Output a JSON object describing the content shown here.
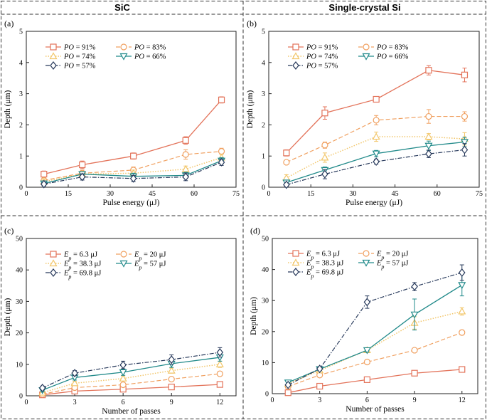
{
  "headers": {
    "left": "SiC",
    "right": "Single-crystal Si"
  },
  "colors": {
    "red": "#e3735a",
    "orange": "#f0a060",
    "yellow": "#f2c66a",
    "teal": "#218a8a",
    "navy": "#26385a"
  },
  "chart_data": [
    {
      "panel": "(a)",
      "type": "line",
      "material": "SiC",
      "xlabel": "Pulse energy (μJ)",
      "ylabel": "Depth (μm)",
      "xlim": [
        0,
        75
      ],
      "ylim": [
        0,
        5
      ],
      "xticks": [
        0,
        15,
        30,
        45,
        60,
        75
      ],
      "yticks": [
        0,
        1,
        2,
        3,
        4,
        5
      ],
      "x": [
        6.3,
        20,
        38.3,
        57,
        69.8
      ],
      "series": [
        {
          "name": "PO = 91%",
          "values": [
            0.42,
            0.72,
            1.0,
            1.5,
            2.8
          ],
          "err": [
            0.1,
            0.12,
            0.1,
            0.12,
            0.1
          ]
        },
        {
          "name": "PO = 83%",
          "values": [
            0.22,
            0.45,
            0.55,
            1.05,
            1.15
          ],
          "err": [
            0.08,
            0.1,
            0.1,
            0.15,
            0.1
          ]
        },
        {
          "name": "PO = 74%",
          "values": [
            0.18,
            0.42,
            0.45,
            0.58,
            0.95
          ],
          "err": [
            0.08,
            0.08,
            0.1,
            0.1,
            0.1
          ]
        },
        {
          "name": "PO = 66%",
          "values": [
            0.12,
            0.42,
            0.35,
            0.38,
            0.85
          ],
          "err": [
            0.08,
            0.08,
            0.1,
            0.1,
            0.1
          ]
        },
        {
          "name": "PO = 57%",
          "values": [
            0.1,
            0.33,
            0.28,
            0.33,
            0.8
          ],
          "err": [
            0.05,
            0.1,
            0.1,
            0.12,
            0.1
          ]
        }
      ]
    },
    {
      "panel": "(b)",
      "type": "line",
      "material": "Single-crystal Si",
      "xlabel": "Pulse energy (μJ)",
      "ylabel": "Depth (μm)",
      "xlim": [
        0,
        75
      ],
      "ylim": [
        0,
        5
      ],
      "xticks": [
        0,
        15,
        30,
        45,
        60,
        75
      ],
      "yticks": [
        0,
        1,
        2,
        3,
        4,
        5
      ],
      "x": [
        6.3,
        20,
        38.3,
        57,
        69.8
      ],
      "series": [
        {
          "name": "PO = 91%",
          "values": [
            1.1,
            2.38,
            2.82,
            3.75,
            3.6
          ],
          "err": [
            0.1,
            0.2,
            0.08,
            0.15,
            0.22
          ]
        },
        {
          "name": "PO = 83%",
          "values": [
            0.8,
            1.35,
            2.15,
            2.27,
            2.27
          ],
          "err": [
            0.05,
            0.1,
            0.15,
            0.22,
            0.15
          ]
        },
        {
          "name": "PO = 74%",
          "values": [
            0.3,
            0.95,
            1.62,
            1.62,
            1.55
          ],
          "err": [
            0.1,
            0.15,
            0.15,
            0.1,
            0.2
          ]
        },
        {
          "name": "PO = 66%",
          "values": [
            0.15,
            0.55,
            1.08,
            1.33,
            1.45
          ],
          "err": [
            0.08,
            0.1,
            0.1,
            0.15,
            0.15
          ]
        },
        {
          "name": "PO = 57%",
          "values": [
            0.08,
            0.42,
            0.82,
            1.07,
            1.2
          ],
          "err": [
            0.05,
            0.15,
            0.08,
            0.12,
            0.2
          ]
        }
      ]
    },
    {
      "panel": "(c)",
      "type": "line",
      "material": "SiC",
      "xlabel": "Number of passes",
      "ylabel": "Depth (μm)",
      "xlim": [
        0,
        13
      ],
      "ylim": [
        0,
        50
      ],
      "xticks": [
        0,
        3,
        6,
        9,
        12
      ],
      "yticks": [
        0,
        10,
        20,
        30,
        40,
        50
      ],
      "x": [
        1,
        3,
        6,
        9,
        12
      ],
      "series": [
        {
          "name": "Ep = 6.3 μJ",
          "values": [
            0.3,
            1.5,
            2.1,
            2.8,
            3.6
          ],
          "err": [
            0.2,
            0.3,
            0.3,
            0.3,
            0.3
          ]
        },
        {
          "name": "Ep = 20 μJ",
          "values": [
            0.5,
            2.6,
            3.5,
            5.3,
            7.0
          ],
          "err": [
            0.3,
            0.4,
            0.5,
            0.5,
            0.6
          ]
        },
        {
          "name": "Ep = 38.3 μJ",
          "values": [
            1.0,
            4.0,
            5.5,
            8.0,
            10.0
          ],
          "err": [
            0.5,
            0.6,
            0.8,
            0.8,
            1.0
          ]
        },
        {
          "name": "Ep = 57 μJ",
          "values": [
            1.8,
            5.8,
            7.5,
            10.2,
            12.2
          ],
          "err": [
            0.5,
            0.8,
            1.0,
            1.2,
            1.2
          ]
        },
        {
          "name": "Ep = 69.8 μJ",
          "values": [
            2.5,
            7.2,
            9.8,
            11.5,
            13.8
          ],
          "err": [
            0.6,
            0.8,
            1.2,
            1.5,
            1.5
          ]
        }
      ]
    },
    {
      "panel": "(d)",
      "type": "line",
      "material": "Single-crystal Si",
      "xlabel": "Number of passes",
      "ylabel": "Depth (μm)",
      "xlim": [
        0,
        13
      ],
      "ylim": [
        0,
        50
      ],
      "xticks": [
        0,
        3,
        6,
        9,
        12
      ],
      "yticks": [
        0,
        10,
        20,
        30,
        40,
        50
      ],
      "x": [
        1,
        3,
        6,
        9,
        12
      ],
      "series": [
        {
          "name": "Ep = 6.3 μJ",
          "values": [
            0.3,
            2.4,
            4.5,
            6.6,
            7.8
          ],
          "err": [
            0.2,
            0.3,
            0.3,
            0.3,
            0.3
          ]
        },
        {
          "name": "Ep = 20 μJ",
          "values": [
            2.3,
            6.0,
            10.2,
            14.0,
            19.7
          ],
          "err": [
            0.3,
            0.5,
            0.5,
            0.5,
            0.8
          ]
        },
        {
          "name": "Ep = 38.3 μJ",
          "values": [
            3.2,
            7.5,
            14.0,
            22.8,
            26.5
          ],
          "err": [
            0.3,
            0.5,
            0.8,
            2.0,
            1.2
          ]
        },
        {
          "name": "Ep = 57 μJ",
          "values": [
            3.6,
            7.9,
            14.0,
            25.5,
            35.0
          ],
          "err": [
            0.4,
            0.5,
            0.6,
            5.0,
            3.5
          ]
        },
        {
          "name": "Ep = 69.8 μJ",
          "values": [
            2.8,
            8.0,
            29.5,
            34.5,
            39.0
          ],
          "err": [
            0.4,
            0.5,
            2.0,
            1.3,
            2.5
          ]
        }
      ]
    }
  ]
}
